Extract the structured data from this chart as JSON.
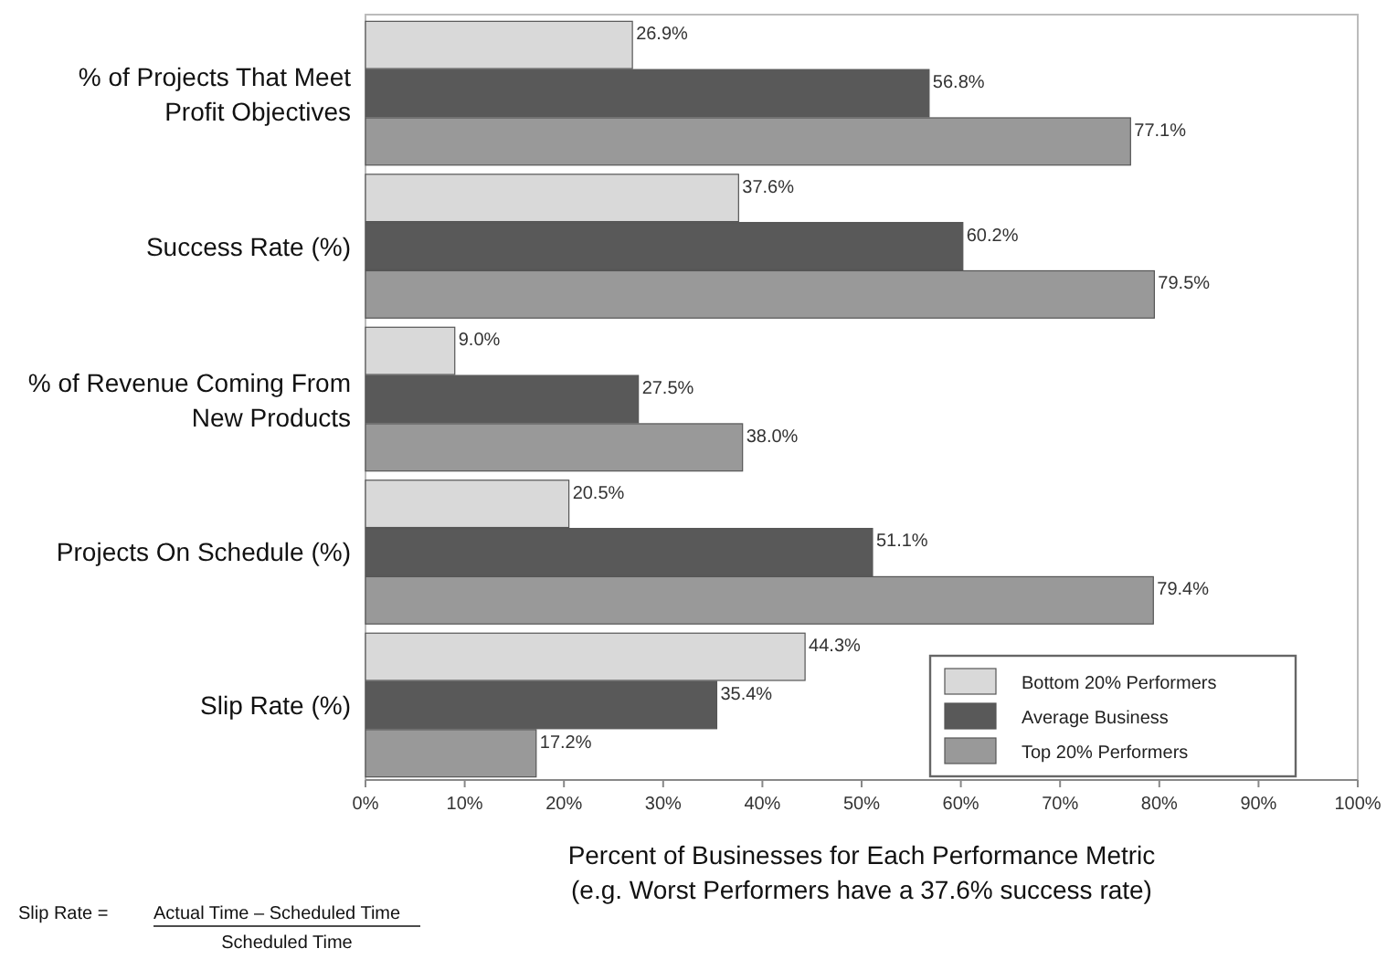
{
  "chart_data": {
    "type": "bar",
    "orientation": "horizontal",
    "xlabel": "Percent of Businesses for Each Performance Metric\n(e.g. Worst Performers have a 37.6% success rate)",
    "categories": [
      "% of Projects That Meet Profit Objectives",
      "Success Rate (%)",
      "% of Revenue Coming From New Products",
      "Projects On Schedule (%)",
      "Slip Rate (%)"
    ],
    "series": [
      {
        "name": "Bottom 20% Performers",
        "color": "#d9d9d9",
        "values": [
          26.9,
          37.6,
          9.0,
          20.5,
          44.3
        ],
        "value_labels": [
          "26.9%",
          "37.6%",
          "9.0%",
          "20.5%",
          "44.3%"
        ]
      },
      {
        "name": "Average Business",
        "color": "#595959",
        "values": [
          56.8,
          60.2,
          27.5,
          51.1,
          35.4
        ],
        "value_labels": [
          "56.8%",
          "60.2%",
          "27.5%",
          "51.1%",
          "35.4%"
        ]
      },
      {
        "name": "Top 20% Performers",
        "color": "#999999",
        "values": [
          77.1,
          79.5,
          38.0,
          79.4,
          17.2
        ],
        "value_labels": [
          "77.1%",
          "79.5%",
          "38.0%",
          "79.4%",
          "17.2%"
        ]
      }
    ],
    "xlim": [
      0,
      100
    ],
    "xticks": [
      {
        "value": 0,
        "label": "0%"
      },
      {
        "value": 10,
        "label": "10%"
      },
      {
        "value": 20,
        "label": "20%"
      },
      {
        "value": 30,
        "label": "30%"
      },
      {
        "value": 40,
        "label": "40%"
      },
      {
        "value": 50,
        "label": "50%"
      },
      {
        "value": 60,
        "label": "60%"
      },
      {
        "value": 70,
        "label": "70%"
      },
      {
        "value": 80,
        "label": "80%"
      },
      {
        "value": 90,
        "label": "90%"
      },
      {
        "value": 100,
        "label": "100%"
      }
    ],
    "legend": "bottom right",
    "grid": false,
    "annotations": [
      "Slip Rate =",
      "Actual Time – Scheduled Time",
      "Scheduled Time"
    ]
  }
}
